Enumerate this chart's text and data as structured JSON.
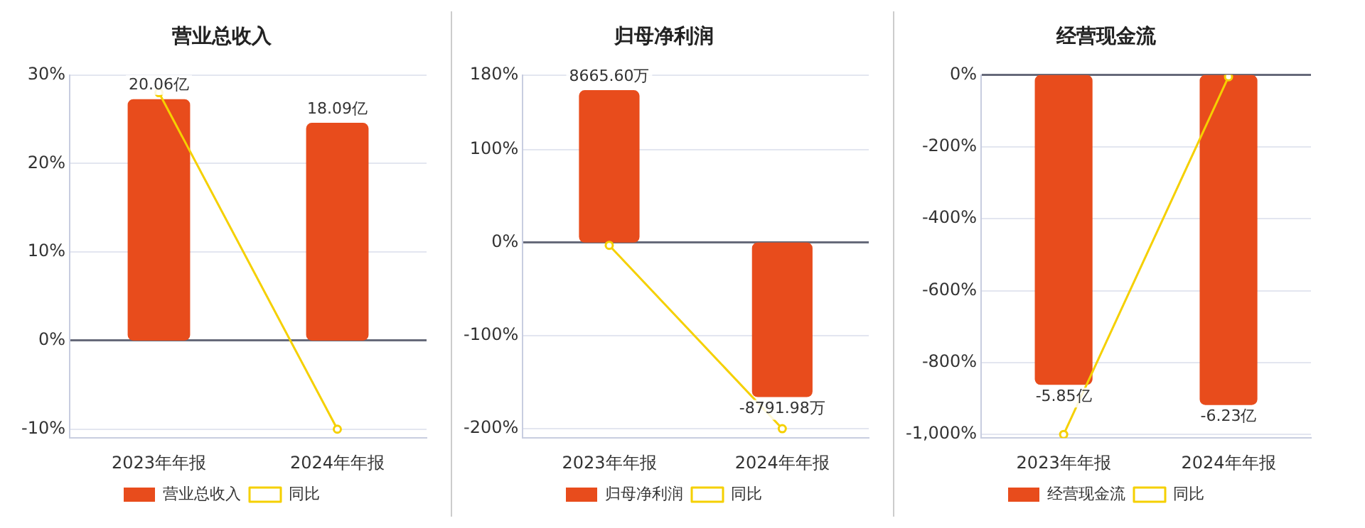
{
  "chart_data": [
    {
      "type": "bar",
      "title": "营业总收入",
      "categories": [
        "2023年年报",
        "2024年年报"
      ],
      "legend": "bottom",
      "grid": "y",
      "ylim": [
        -11,
        30
      ],
      "yticks": [
        {
          "value": -10,
          "label": "-10%"
        },
        {
          "value": 0,
          "label": "0%"
        },
        {
          "value": 10,
          "label": "10%"
        },
        {
          "value": 20,
          "label": "20%"
        },
        {
          "value": 30,
          "label": "30%"
        }
      ],
      "series": [
        {
          "name": "营业总收入",
          "axis": "y2",
          "color": "#e84c1c",
          "values": [
            20.06,
            18.09
          ],
          "value_labels": [
            "20.06亿",
            "18.09亿"
          ]
        },
        {
          "name": "同比",
          "type": "line",
          "axis": "y",
          "color": "#f5d000",
          "marker": "circle",
          "values": [
            28,
            -10
          ]
        }
      ]
    },
    {
      "type": "bar",
      "title": "归母净利润",
      "categories": [
        "2023年年报",
        "2024年年报"
      ],
      "legend": "bottom",
      "grid": "y",
      "ylim": [
        -210,
        180
      ],
      "yticks": [
        {
          "value": -200,
          "label": "-200%"
        },
        {
          "value": -100,
          "label": "-100%"
        },
        {
          "value": 0,
          "label": "0%"
        },
        {
          "value": 100,
          "label": "100%"
        },
        {
          "value": 180,
          "label": "180%"
        }
      ],
      "series": [
        {
          "name": "归母净利润",
          "axis": "y2",
          "color": "#e84c1c",
          "values": [
            8665.6,
            -8791.98
          ],
          "value_labels": [
            "8665.60万",
            "-8791.98万"
          ]
        },
        {
          "name": "同比",
          "type": "line",
          "axis": "y",
          "color": "#f5d000",
          "marker": "circle",
          "values": [
            -3,
            -200
          ]
        }
      ]
    },
    {
      "type": "bar",
      "title": "经营现金流",
      "categories": [
        "2023年年报",
        "2024年年报"
      ],
      "legend": "bottom",
      "grid": "y",
      "ylim": [
        -1010,
        0
      ],
      "yticks": [
        {
          "value": -1000,
          "label": "-1,000%"
        },
        {
          "value": -800,
          "label": "-800%"
        },
        {
          "value": -600,
          "label": "-600%"
        },
        {
          "value": -400,
          "label": "-400%"
        },
        {
          "value": -200,
          "label": "-200%"
        },
        {
          "value": 0,
          "label": "0%"
        }
      ],
      "series": [
        {
          "name": "经营现金流",
          "axis": "y2",
          "color": "#e84c1c",
          "values": [
            -5.85,
            -6.23
          ],
          "value_labels": [
            "-5.85亿",
            "-6.23亿"
          ]
        },
        {
          "name": "同比",
          "type": "line",
          "axis": "y",
          "color": "#f5d000",
          "marker": "circle",
          "values": [
            -1000,
            -5
          ]
        }
      ]
    }
  ]
}
